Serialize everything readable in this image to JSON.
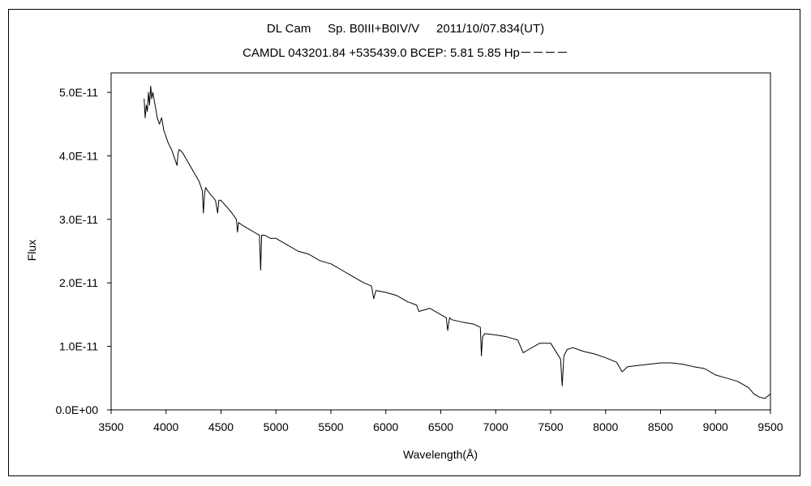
{
  "chart_data": {
    "type": "line",
    "title": "DL Cam     Sp. B0III+B0IV/V     2011/10/07.834(UT)",
    "subtitle": "CAMDL 043201.84 +535439.0 BCEP: 5.81 5.85 Hp－－－－",
    "xlabel": "Wavelength(Å)",
    "ylabel": "Flux",
    "xlim": [
      3500,
      9500
    ],
    "ylim": [
      0,
      5e-11
    ],
    "xticks": [
      3500,
      4000,
      4500,
      5000,
      5500,
      6000,
      6500,
      7000,
      7500,
      8000,
      8500,
      9000,
      9500
    ],
    "yticks": [
      0,
      1e-11,
      2e-11,
      3e-11,
      4e-11,
      5e-11
    ],
    "xtick_labels": [
      "3500",
      "4000",
      "4500",
      "5000",
      "5500",
      "6000",
      "6500",
      "7000",
      "7500",
      "8000",
      "8500",
      "9000",
      "9500"
    ],
    "ytick_labels": [
      "0.0E+00",
      "1.0E-11",
      "2.0E-11",
      "3.0E-11",
      "4.0E-11",
      "5.0E-11"
    ],
    "grid": false,
    "series": [
      {
        "color": "#000000",
        "x": [
          3800,
          3810,
          3820,
          3830,
          3840,
          3850,
          3860,
          3870,
          3880,
          3890,
          3900,
          3920,
          3940,
          3960,
          3980,
          4000,
          4020,
          4050,
          4080,
          4100,
          4110,
          4120,
          4150,
          4200,
          4250,
          4300,
          4330,
          4340,
          4350,
          4360,
          4400,
          4450,
          4470,
          4480,
          4500,
          4550,
          4600,
          4640,
          4650,
          4660,
          4700,
          4750,
          4800,
          4850,
          4861,
          4870,
          4900,
          4950,
          5000,
          5100,
          5200,
          5300,
          5400,
          5500,
          5600,
          5700,
          5800,
          5870,
          5890,
          5910,
          6000,
          6100,
          6200,
          6280,
          6300,
          6400,
          6500,
          6550,
          6563,
          6580,
          6600,
          6700,
          6800,
          6860,
          6870,
          6880,
          6900,
          7000,
          7100,
          7200,
          7250,
          7300,
          7400,
          7500,
          7590,
          7605,
          7620,
          7650,
          7700,
          7800,
          7900,
          8000,
          8100,
          8150,
          8200,
          8300,
          8400,
          8500,
          8600,
          8700,
          8800,
          8900,
          9000,
          9100,
          9200,
          9300,
          9350,
          9400,
          9450,
          9500
        ],
        "y": [
          4.9e-11,
          4.6e-11,
          4.8e-11,
          4.7e-11,
          5e-11,
          4.8e-11,
          5.1e-11,
          4.9e-11,
          5e-11,
          4.9e-11,
          4.8e-11,
          4.6e-11,
          4.5e-11,
          4.6e-11,
          4.4e-11,
          4.3e-11,
          4.2e-11,
          4.1e-11,
          3.95e-11,
          3.85e-11,
          4.05e-11,
          4.1e-11,
          4.05e-11,
          3.9e-11,
          3.75e-11,
          3.6e-11,
          3.45e-11,
          3.1e-11,
          3.4e-11,
          3.5e-11,
          3.4e-11,
          3.3e-11,
          3.1e-11,
          3.3e-11,
          3.3e-11,
          3.2e-11,
          3.1e-11,
          3e-11,
          2.8e-11,
          2.95e-11,
          2.9e-11,
          2.85e-11,
          2.8e-11,
          2.75e-11,
          2.2e-11,
          2.75e-11,
          2.75e-11,
          2.7e-11,
          2.7e-11,
          2.6e-11,
          2.5e-11,
          2.45e-11,
          2.35e-11,
          2.3e-11,
          2.2e-11,
          2.1e-11,
          2e-11,
          1.95e-11,
          1.75e-11,
          1.88e-11,
          1.85e-11,
          1.8e-11,
          1.7e-11,
          1.65e-11,
          1.55e-11,
          1.6e-11,
          1.5e-11,
          1.45e-11,
          1.25e-11,
          1.45e-11,
          1.42e-11,
          1.38e-11,
          1.35e-11,
          1.3e-11,
          8.5e-12,
          1.15e-11,
          1.2e-11,
          1.18e-11,
          1.15e-11,
          1.1e-11,
          9e-12,
          9.5e-12,
          1.05e-11,
          1.05e-11,
          8e-12,
          3.8e-12,
          8.5e-12,
          9.5e-12,
          9.8e-12,
          9.2e-12,
          8.8e-12,
          8.2e-12,
          7.5e-12,
          6e-12,
          6.8e-12,
          7e-12,
          7.2e-12,
          7.4e-12,
          7.4e-12,
          7.2e-12,
          6.8e-12,
          6.5e-12,
          5.5e-12,
          5e-12,
          4.5e-12,
          3.5e-12,
          2.5e-12,
          2e-12,
          1.8e-12,
          2.5e-12
        ]
      }
    ]
  }
}
